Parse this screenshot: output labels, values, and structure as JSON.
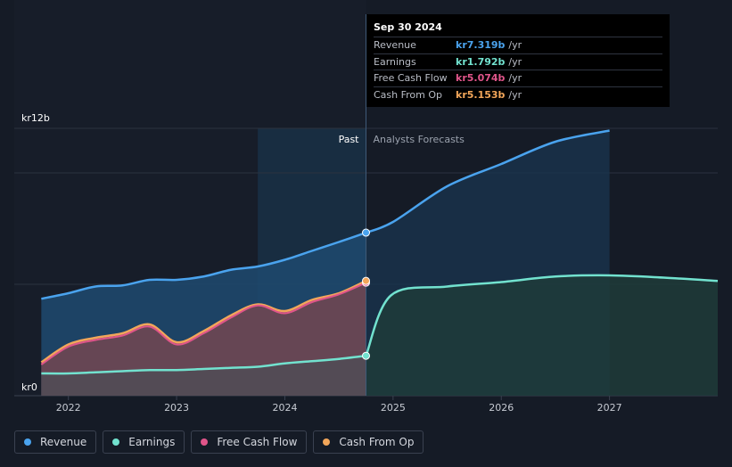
{
  "tooltip": {
    "date": "Sep 30 2024",
    "rows": [
      {
        "label": "Revenue",
        "value": "kr7.319b",
        "unit": "/yr",
        "color": "#4aa3ee"
      },
      {
        "label": "Earnings",
        "value": "kr1.792b",
        "unit": "/yr",
        "color": "#72e2cf"
      },
      {
        "label": "Free Cash Flow",
        "value": "kr5.074b",
        "unit": "/yr",
        "color": "#e0558a"
      },
      {
        "label": "Cash From Op",
        "value": "kr5.153b",
        "unit": "/yr",
        "color": "#f2a65a"
      }
    ]
  },
  "chart_data": {
    "type": "line",
    "title": "",
    "xlabel": "",
    "ylabel": "",
    "y_unit_prefix": "kr",
    "ylim": [
      0,
      12
    ],
    "y_ticks": [
      {
        "value": 12,
        "label": "kr12b"
      },
      {
        "value": 0,
        "label": "kr0"
      }
    ],
    "x_ticks": [
      {
        "value": 2022,
        "label": "2022"
      },
      {
        "value": 2023,
        "label": "2023"
      },
      {
        "value": 2024,
        "label": "2024"
      },
      {
        "value": 2025,
        "label": "2025"
      },
      {
        "value": 2026,
        "label": "2026"
      },
      {
        "value": 2027,
        "label": "2027"
      }
    ],
    "xlim": [
      2021.5,
      2028.0
    ],
    "divider_x": 2024.75,
    "highlight_start_x": 2023.75,
    "forecast_end_x": 2027.0,
    "past_label": "Past",
    "forecast_label": "Analysts Forecasts",
    "series": [
      {
        "name": "Revenue",
        "color": "#4aa3ee",
        "fill": "#1c4466",
        "past": [
          [
            2021.75,
            4.35
          ],
          [
            2022.0,
            4.6
          ],
          [
            2022.25,
            4.9
          ],
          [
            2022.5,
            4.95
          ],
          [
            2022.75,
            5.2
          ],
          [
            2023.0,
            5.2
          ],
          [
            2023.25,
            5.35
          ],
          [
            2023.5,
            5.65
          ],
          [
            2023.75,
            5.8
          ],
          [
            2024.0,
            6.1
          ],
          [
            2024.25,
            6.5
          ],
          [
            2024.5,
            6.9
          ],
          [
            2024.75,
            7.319
          ]
        ],
        "forecast": [
          [
            2024.75,
            7.319
          ],
          [
            2025.0,
            7.8
          ],
          [
            2025.5,
            9.4
          ],
          [
            2026.0,
            10.4
          ],
          [
            2026.5,
            11.4
          ],
          [
            2027.0,
            11.9
          ]
        ]
      },
      {
        "name": "Earnings",
        "color": "#72e2cf",
        "fill": "#1f3b3a",
        "past": [
          [
            2021.75,
            1.0
          ],
          [
            2022.0,
            1.0
          ],
          [
            2022.25,
            1.05
          ],
          [
            2022.5,
            1.1
          ],
          [
            2022.75,
            1.15
          ],
          [
            2023.0,
            1.15
          ],
          [
            2023.25,
            1.2
          ],
          [
            2023.5,
            1.25
          ],
          [
            2023.75,
            1.3
          ],
          [
            2024.0,
            1.45
          ],
          [
            2024.25,
            1.55
          ],
          [
            2024.5,
            1.65
          ],
          [
            2024.75,
            1.792
          ]
        ],
        "forecast": [
          [
            2024.75,
            1.792
          ],
          [
            2024.98,
            4.5
          ],
          [
            2025.5,
            4.9
          ],
          [
            2026.0,
            5.1
          ],
          [
            2026.5,
            5.35
          ],
          [
            2027.0,
            5.4
          ],
          [
            2027.5,
            5.3
          ],
          [
            2028.0,
            5.15
          ]
        ]
      },
      {
        "name": "Free Cash Flow",
        "color": "#e0558a",
        "fill": "#6a3a4e",
        "past": [
          [
            2021.75,
            1.4
          ],
          [
            2022.0,
            2.2
          ],
          [
            2022.25,
            2.5
          ],
          [
            2022.5,
            2.7
          ],
          [
            2022.75,
            3.1
          ],
          [
            2023.0,
            2.3
          ],
          [
            2023.25,
            2.8
          ],
          [
            2023.5,
            3.5
          ],
          [
            2023.75,
            4.05
          ],
          [
            2024.0,
            3.7
          ],
          [
            2024.25,
            4.2
          ],
          [
            2024.5,
            4.55
          ],
          [
            2024.75,
            5.074
          ]
        ],
        "forecast": []
      },
      {
        "name": "Cash From Op",
        "color": "#f2a65a",
        "fill": "#6b4a3e",
        "past": [
          [
            2021.75,
            1.5
          ],
          [
            2022.0,
            2.3
          ],
          [
            2022.25,
            2.6
          ],
          [
            2022.5,
            2.8
          ],
          [
            2022.75,
            3.2
          ],
          [
            2023.0,
            2.4
          ],
          [
            2023.25,
            2.9
          ],
          [
            2023.5,
            3.6
          ],
          [
            2023.75,
            4.1
          ],
          [
            2024.0,
            3.8
          ],
          [
            2024.25,
            4.3
          ],
          [
            2024.5,
            4.6
          ],
          [
            2024.75,
            5.153
          ]
        ],
        "forecast": []
      }
    ]
  },
  "legend": [
    {
      "label": "Revenue",
      "color": "#4aa3ee"
    },
    {
      "label": "Earnings",
      "color": "#72e2cf"
    },
    {
      "label": "Free Cash Flow",
      "color": "#e0558a"
    },
    {
      "label": "Cash From Op",
      "color": "#f2a65a"
    }
  ]
}
